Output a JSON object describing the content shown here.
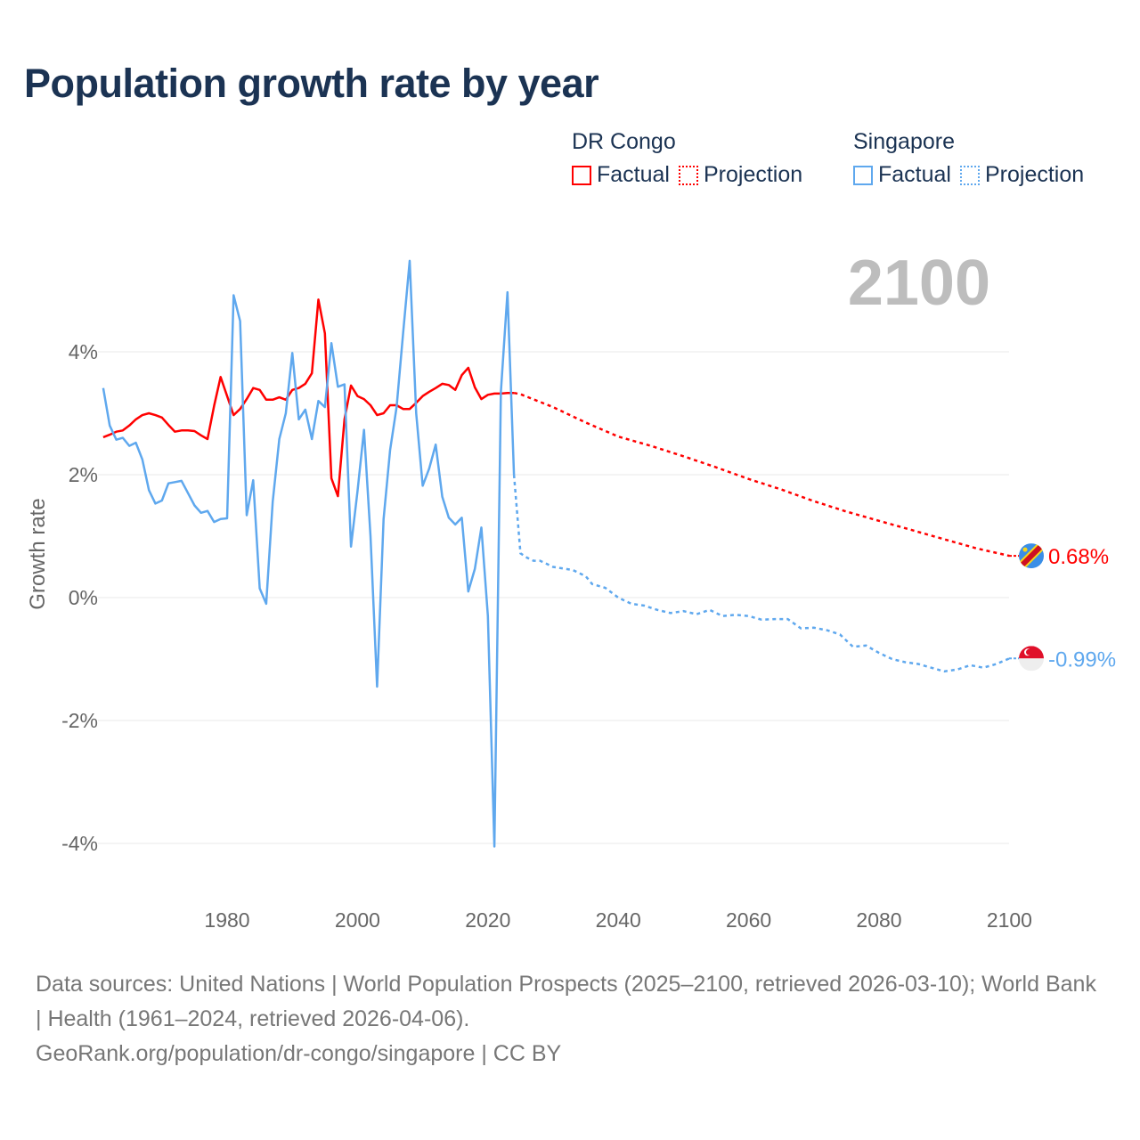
{
  "title": "Population growth rate by year",
  "legend": {
    "groups": [
      {
        "name": "DR Congo",
        "color": "#ff0000",
        "factual": "Factual",
        "projection": "Projection"
      },
      {
        "name": "Singapore",
        "color": "#5fa8ee",
        "factual": "Factual",
        "projection": "Projection"
      }
    ]
  },
  "footer": {
    "sources": "Data sources: United Nations | World Population Prospects (2025–2100, retrieved 2026-03-10); World Bank | Health (1961–2024, retrieved 2026-04-06).",
    "credit": "GeoRank.org/population/dr-congo/singapore | CC BY"
  },
  "chart_data": {
    "type": "line",
    "title": "Population growth rate by year",
    "xlabel": "",
    "ylabel": "Growth rate",
    "current_year_label": "2100",
    "xlim": [
      1961,
      2100
    ],
    "ylim": [
      -4.8,
      5.6
    ],
    "x_ticks": [
      1980,
      2000,
      2020,
      2040,
      2060,
      2080,
      2100
    ],
    "y_ticks": [
      {
        "v": 4,
        "label": "4%"
      },
      {
        "v": 2,
        "label": "2%"
      },
      {
        "v": 0,
        "label": "0%"
      },
      {
        "v": -2,
        "label": "-2%"
      },
      {
        "v": -4,
        "label": "-4%"
      }
    ],
    "grid": true,
    "legend_position": "top-right",
    "series": [
      {
        "name": "DR Congo",
        "color": "#ff0000",
        "end_label": "0.68%",
        "flag": "dr-congo-flag",
        "factual": {
          "x": [
            1961,
            1962,
            1963,
            1964,
            1965,
            1966,
            1967,
            1968,
            1969,
            1970,
            1971,
            1972,
            1973,
            1974,
            1975,
            1976,
            1977,
            1978,
            1979,
            1980,
            1981,
            1982,
            1983,
            1984,
            1985,
            1986,
            1987,
            1988,
            1989,
            1990,
            1991,
            1992,
            1993,
            1994,
            1995,
            1996,
            1997,
            1998,
            1999,
            2000,
            2001,
            2002,
            2003,
            2004,
            2005,
            2006,
            2007,
            2008,
            2009,
            2010,
            2011,
            2012,
            2013,
            2014,
            2015,
            2016,
            2017,
            2018,
            2019,
            2020,
            2021,
            2022,
            2023,
            2024
          ],
          "y": [
            2.61,
            2.65,
            2.7,
            2.72,
            2.8,
            2.9,
            2.97,
            3.0,
            2.97,
            2.93,
            2.81,
            2.7,
            2.72,
            2.72,
            2.71,
            2.64,
            2.58,
            3.12,
            3.59,
            3.28,
            2.97,
            3.07,
            3.23,
            3.41,
            3.38,
            3.22,
            3.22,
            3.26,
            3.22,
            3.38,
            3.41,
            3.48,
            3.65,
            4.85,
            4.3,
            1.94,
            1.65,
            2.9,
            3.45,
            3.28,
            3.23,
            3.13,
            2.97,
            3.0,
            3.13,
            3.13,
            3.07,
            3.07,
            3.17,
            3.28,
            3.35,
            3.41,
            3.48,
            3.46,
            3.38,
            3.62,
            3.74,
            3.42,
            3.23,
            3.3,
            3.32,
            3.32,
            3.33,
            3.33
          ]
        },
        "projection": {
          "x": [
            2024,
            2025,
            2030,
            2035,
            2040,
            2045,
            2050,
            2055,
            2060,
            2065,
            2070,
            2075,
            2080,
            2085,
            2090,
            2095,
            2100
          ],
          "y": [
            3.33,
            3.31,
            3.1,
            2.85,
            2.62,
            2.47,
            2.3,
            2.12,
            1.93,
            1.76,
            1.57,
            1.4,
            1.25,
            1.1,
            0.95,
            0.8,
            0.68
          ]
        }
      },
      {
        "name": "Singapore",
        "color": "#5fa8ee",
        "end_label": "-0.99%",
        "flag": "singapore-flag",
        "factual": {
          "x": [
            1961,
            1962,
            1963,
            1964,
            1965,
            1966,
            1967,
            1968,
            1969,
            1970,
            1971,
            1972,
            1973,
            1974,
            1975,
            1976,
            1977,
            1978,
            1979,
            1980,
            1981,
            1982,
            1983,
            1984,
            1985,
            1986,
            1987,
            1988,
            1989,
            1990,
            1991,
            1992,
            1993,
            1994,
            1995,
            1996,
            1997,
            1998,
            1999,
            2000,
            2001,
            2002,
            2003,
            2004,
            2005,
            2006,
            2007,
            2008,
            2009,
            2010,
            2011,
            2012,
            2013,
            2014,
            2015,
            2016,
            2017,
            2018,
            2019,
            2020,
            2021,
            2022,
            2023,
            2024
          ],
          "y": [
            3.41,
            2.8,
            2.57,
            2.6,
            2.47,
            2.52,
            2.25,
            1.75,
            1.53,
            1.58,
            1.86,
            1.88,
            1.9,
            1.7,
            1.5,
            1.38,
            1.41,
            1.23,
            1.28,
            1.29,
            4.92,
            4.5,
            1.34,
            1.91,
            0.15,
            -0.1,
            1.56,
            2.58,
            3.0,
            3.98,
            2.9,
            3.06,
            2.58,
            3.2,
            3.1,
            4.14,
            3.43,
            3.47,
            0.83,
            1.73,
            2.73,
            1.0,
            -1.45,
            1.28,
            2.4,
            3.1,
            4.3,
            5.48,
            3.0,
            1.82,
            2.1,
            2.49,
            1.64,
            1.3,
            1.19,
            1.3,
            0.1,
            0.47,
            1.14,
            -0.3,
            -4.05,
            3.35,
            4.97,
            2.0
          ]
        },
        "projection": {
          "x": [
            2024,
            2025,
            2026,
            2027,
            2028,
            2030,
            2033,
            2035,
            2036,
            2038,
            2040,
            2042,
            2044,
            2046,
            2048,
            2050,
            2052,
            2054,
            2056,
            2058,
            2060,
            2062,
            2064,
            2066,
            2068,
            2070,
            2072,
            2074,
            2076,
            2078,
            2080,
            2082,
            2084,
            2086,
            2088,
            2090,
            2092,
            2094,
            2096,
            2098,
            2100
          ],
          "y": [
            2.0,
            0.72,
            0.65,
            0.6,
            0.6,
            0.5,
            0.45,
            0.35,
            0.22,
            0.16,
            0.0,
            -0.1,
            -0.13,
            -0.2,
            -0.25,
            -0.22,
            -0.27,
            -0.2,
            -0.3,
            -0.28,
            -0.3,
            -0.36,
            -0.35,
            -0.35,
            -0.5,
            -0.49,
            -0.53,
            -0.6,
            -0.8,
            -0.78,
            -0.9,
            -1.0,
            -1.05,
            -1.08,
            -1.14,
            -1.2,
            -1.17,
            -1.1,
            -1.14,
            -1.08,
            -0.99
          ]
        }
      }
    ]
  }
}
